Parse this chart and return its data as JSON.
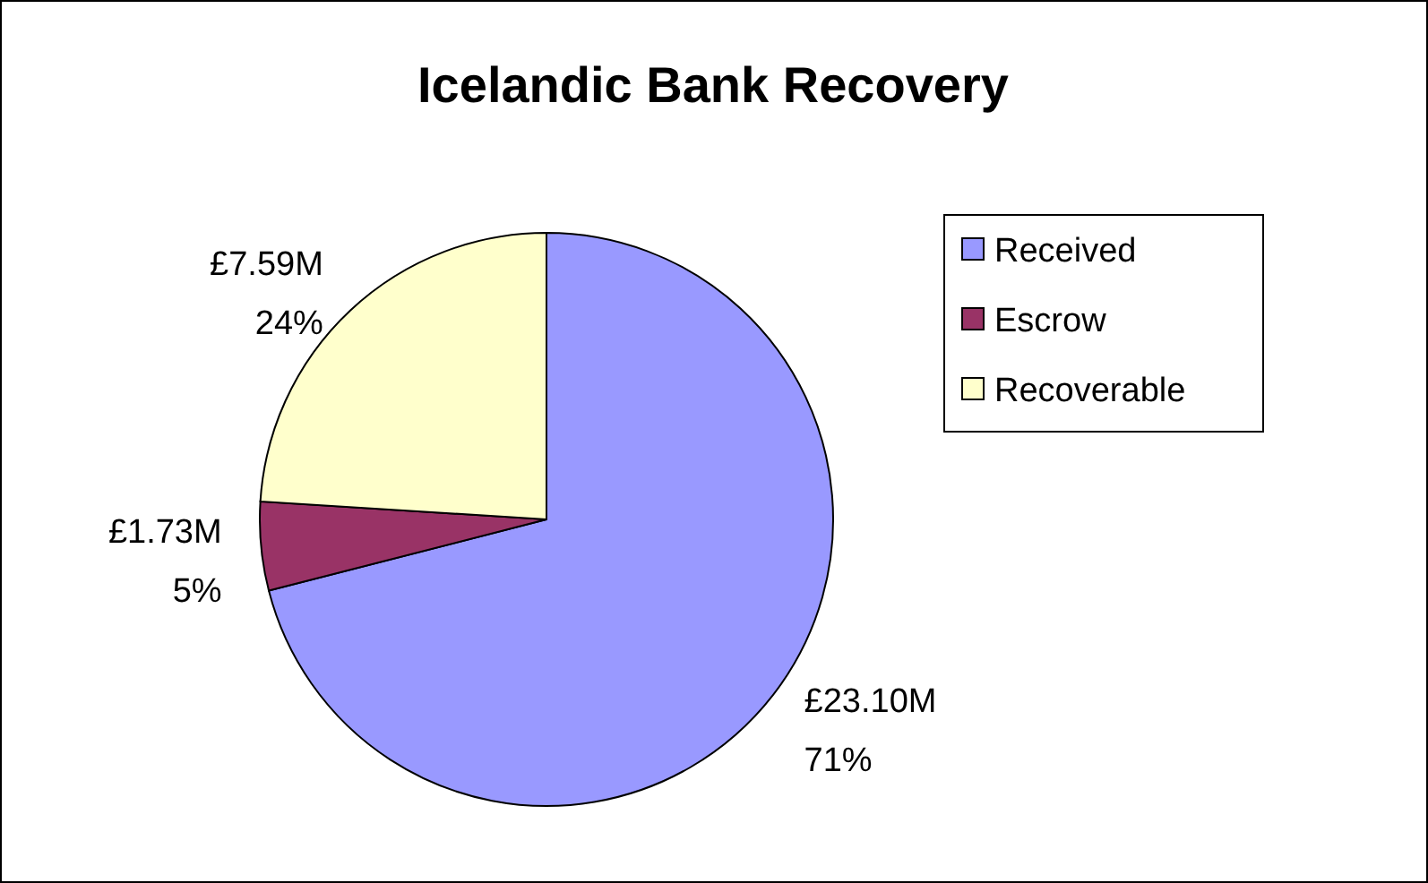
{
  "chart_data": {
    "type": "pie",
    "title": "Icelandic Bank Recovery",
    "categories": [
      "Received",
      "Escrow",
      "Recoverable"
    ],
    "values": [
      71,
      5,
      24
    ],
    "colors": [
      "#9999ff",
      "#993366",
      "#ffffcc"
    ],
    "value_labels": [
      "£23.10M\n71%",
      "£1.73M\n5%",
      "£7.59M\n24%"
    ],
    "legend": "right"
  }
}
